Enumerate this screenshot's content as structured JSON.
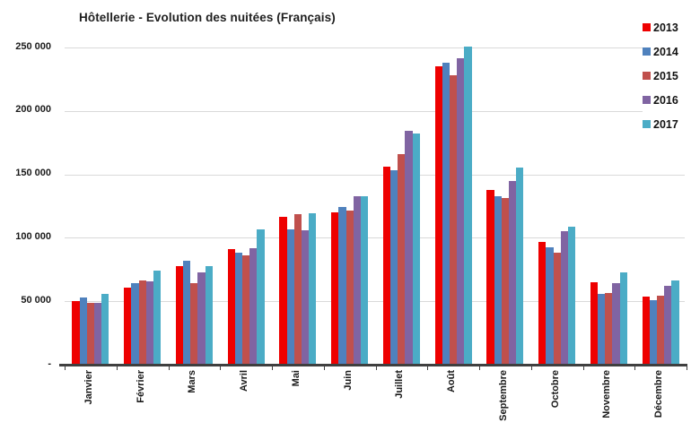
{
  "chart_data": {
    "type": "bar",
    "title": "Hôtellerie - Evolution des nuitées (Français)",
    "xlabel": "",
    "ylabel": "",
    "categories": [
      "Janvier",
      "Février",
      "Mars",
      "Avril",
      "Mai",
      "Juin",
      "Juillet",
      "Août",
      "Septembre",
      "Octobre",
      "Novembre",
      "Décembre"
    ],
    "series": [
      {
        "name": "2013",
        "color": "#ee0000",
        "values": [
          50000,
          61000,
          78000,
          91000,
          116500,
          120000,
          156000,
          235000,
          138000,
          96500,
          65000,
          53500
        ]
      },
      {
        "name": "2014",
        "color": "#4f81bd",
        "values": [
          53000,
          64000,
          82000,
          88000,
          106500,
          124000,
          153000,
          238000,
          132500,
          92500,
          56000,
          50500
        ]
      },
      {
        "name": "2015",
        "color": "#c0504d",
        "values": [
          48500,
          66500,
          64500,
          86000,
          118500,
          121500,
          166000,
          228000,
          131500,
          88000,
          56500,
          54500
        ]
      },
      {
        "name": "2016",
        "color": "#8064a2",
        "values": [
          48500,
          66000,
          72500,
          92000,
          106000,
          132500,
          184500,
          241500,
          144500,
          105500,
          64000,
          62000
        ]
      },
      {
        "name": "2017",
        "color": "#4bacc6",
        "values": [
          56000,
          74500,
          78000,
          106500,
          119000,
          133000,
          182000,
          251000,
          155500,
          108500,
          73000,
          66500
        ]
      }
    ],
    "ylim": [
      0,
      260000
    ],
    "ytick_values": [
      0,
      50000,
      100000,
      150000,
      200000,
      250000
    ],
    "ytick_labels": [
      "-",
      "50 000",
      "100 000",
      "150 000",
      "200 000",
      "250 000"
    ],
    "grid": true,
    "legend_position": "top-right"
  },
  "colors": {
    "grid": "#d9d9d9",
    "axis": "#3f3f3f",
    "text": "#1a1a1a",
    "background": "#ffffff"
  }
}
